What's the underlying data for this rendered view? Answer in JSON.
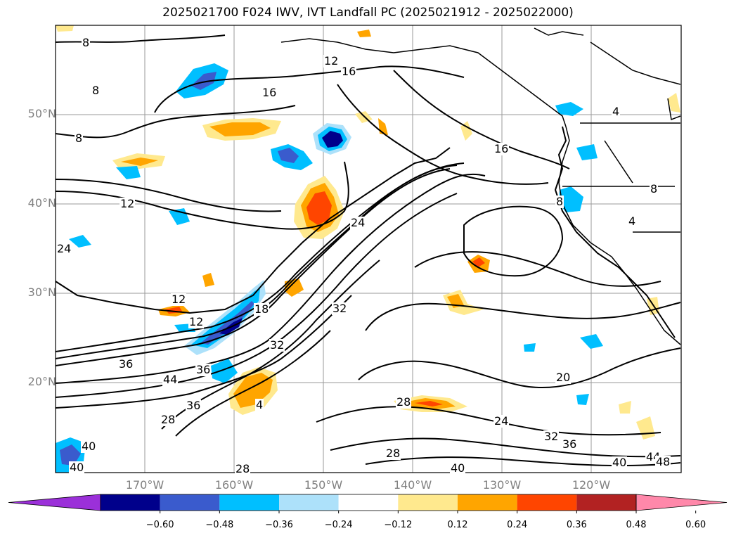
{
  "title": "2025021700 F024 IWV, IVT Landfall PC (2025021912 - 2025022000)",
  "lat_labels": [
    {
      "text": "50°N",
      "value": 50
    },
    {
      "text": "40°N",
      "value": 40
    },
    {
      "text": "30°N",
      "value": 30
    },
    {
      "text": "20°N",
      "value": 20
    }
  ],
  "lon_labels": [
    {
      "text": "170°W",
      "value": -170
    },
    {
      "text": "160°W",
      "value": -160
    },
    {
      "text": "150°W",
      "value": -150
    },
    {
      "text": "140°W",
      "value": -140
    },
    {
      "text": "130°W",
      "value": -130
    },
    {
      "text": "120°W",
      "value": -120
    }
  ],
  "colorbar": {
    "colors": [
      "#9b30d9",
      "#00008b",
      "#3a5bcd",
      "#00bfff",
      "#ade1fa",
      "#ffffff",
      "#ffe98e",
      "#ffa500",
      "#ff4500",
      "#b22222",
      "#ff88aa"
    ],
    "ticks": [
      "−0.60",
      "−0.48",
      "−0.36",
      "−0.24",
      "−0.12",
      "0.12",
      "0.24",
      "0.36",
      "0.48",
      "0.60"
    ]
  },
  "contour_labels": [
    "8",
    "8",
    "8",
    "12",
    "16",
    "16",
    "16",
    "4",
    "12",
    "24",
    "24",
    "12",
    "12",
    "18",
    "36",
    "40",
    "44",
    "32",
    "36",
    "28",
    "4",
    "32",
    "28",
    "20",
    "24",
    "32",
    "36",
    "40",
    "44",
    "48",
    "28",
    "40",
    "40",
    "36",
    "8",
    "8",
    "4",
    "28"
  ]
}
